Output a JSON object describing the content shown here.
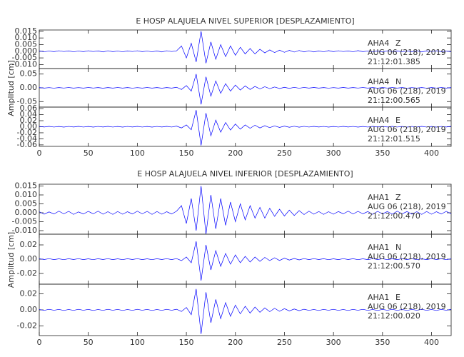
{
  "chart_data": [
    {
      "type": "seismogram",
      "title": "E HOSP ALAJUELA NIVEL SUPERIOR [DESPLAZAMIENTO]",
      "y_label": "Amplitud [cm]",
      "xlim": [
        0,
        420
      ],
      "xticks": [
        0,
        50,
        100,
        150,
        200,
        250,
        300,
        350,
        400
      ],
      "x": [
        0,
        5,
        10,
        15,
        20,
        25,
        30,
        35,
        40,
        45,
        50,
        55,
        60,
        65,
        70,
        75,
        80,
        85,
        90,
        95,
        100,
        105,
        110,
        115,
        120,
        125,
        130,
        135,
        140,
        145,
        150,
        155,
        160,
        165,
        170,
        175,
        180,
        185,
        190,
        195,
        200,
        205,
        210,
        215,
        220,
        225,
        230,
        235,
        240,
        245,
        250,
        255,
        260,
        265,
        270,
        275,
        280,
        285,
        290,
        295,
        300,
        305,
        310,
        315,
        320,
        325,
        330,
        335,
        340,
        345,
        350,
        355,
        360,
        365,
        370,
        375,
        380,
        385,
        390,
        395,
        400,
        405,
        410,
        415,
        420
      ],
      "panels": [
        {
          "station": "AHA4",
          "component": "Z",
          "date": "AUG 06 (218), 2019",
          "time": "21:12:01.385",
          "color": "#0000ff",
          "ylim": [
            -0.013,
            0.016
          ],
          "yticks": [
            {
              "value": 0.015,
              "label": "0.015"
            },
            {
              "value": 0.01,
              "label": "0.010"
            },
            {
              "value": 0.005,
              "label": "0.005"
            },
            {
              "value": 0,
              "label": "0.000"
            },
            {
              "value": -0.005,
              "label": "-0.005"
            },
            {
              "value": -0.01,
              "label": "-0.010"
            }
          ],
          "values": [
            0.0003,
            -0.0004,
            0.0002,
            -0.0003,
            0.0004,
            -0.0002,
            0.0003,
            -0.0004,
            0.0002,
            -0.0003,
            0.0004,
            -0.0002,
            0.0003,
            -0.0005,
            0.0004,
            -0.0003,
            0.0002,
            -0.0004,
            0.0003,
            -0.0002,
            0.0004,
            -0.0003,
            0.0002,
            -0.0004,
            0.0003,
            -0.0005,
            0.0004,
            -0.0002,
            0.0003,
            0.004,
            -0.005,
            0.006,
            -0.008,
            0.015,
            -0.009,
            0.007,
            -0.006,
            0.005,
            -0.004,
            0.004,
            -0.003,
            0.003,
            -0.002,
            0.002,
            -0.002,
            0.0015,
            -0.0012,
            0.001,
            -0.001,
            0.0008,
            -0.0008,
            0.0007,
            -0.0006,
            0.0006,
            -0.0005,
            0.0004,
            -0.0005,
            0.0003,
            -0.0004,
            0.0005,
            -0.0003,
            0.0004,
            -0.0002,
            0.0003,
            -0.0004,
            0.0005,
            -0.0003,
            0.0002,
            -0.0004,
            0.0003,
            -0.0005,
            0.0004,
            -0.0002,
            0.0003,
            -0.0004,
            0.0002,
            -0.0003,
            0.0004,
            -0.0005,
            0.0003,
            -0.0002,
            0.0004,
            -0.0003,
            0.0002,
            -0.0004
          ]
        },
        {
          "station": "AHA4",
          "component": "N",
          "date": "AUG 06 (218), 2019",
          "time": "21:12:00.565",
          "color": "#0000ff",
          "ylim": [
            -0.07,
            0.07
          ],
          "yticks": [
            0.05,
            {
              "value": 0,
              "label": "0.00"
            },
            -0.05
          ],
          "values": [
            0.001,
            -0.001,
            0.0008,
            -0.0012,
            0.001,
            -0.0008,
            0.0012,
            -0.001,
            0.0008,
            -0.001,
            0.0012,
            -0.0008,
            0.001,
            -0.0012,
            0.0009,
            -0.001,
            0.0011,
            -0.0009,
            0.001,
            -0.0012,
            0.0008,
            -0.001,
            0.0011,
            -0.0009,
            0.001,
            -0.0012,
            0.0009,
            -0.001,
            0.002,
            -0.006,
            0.008,
            -0.012,
            0.05,
            -0.06,
            0.04,
            -0.03,
            0.025,
            -0.02,
            0.015,
            -0.012,
            0.01,
            -0.008,
            0.007,
            -0.006,
            0.005,
            -0.004,
            0.004,
            -0.003,
            0.003,
            -0.0025,
            0.002,
            -0.002,
            0.0018,
            -0.0015,
            0.0014,
            -0.001,
            0.0012,
            -0.0009,
            0.001,
            -0.0011,
            0.0008,
            -0.001,
            0.0012,
            -0.0009,
            0.001,
            -0.0008,
            0.0011,
            -0.001,
            0.0009,
            -0.0012,
            0.001,
            -0.0008,
            0.0011,
            -0.0009,
            0.001,
            -0.0012,
            0.0008,
            -0.001,
            0.0009,
            -0.0011,
            0.001,
            -0.0008,
            0.0012,
            -0.0009,
            0.001
          ]
        },
        {
          "station": "AHA4",
          "component": "E",
          "date": "AUG 06 (218), 2019",
          "time": "21:12:01.515",
          "color": "#0000ff",
          "ylim": [
            -0.065,
            0.065
          ],
          "yticks": [
            0.06,
            0.04,
            0.02,
            {
              "value": 0,
              "label": "0.00"
            },
            -0.02,
            -0.04,
            -0.06
          ],
          "values": [
            0.001,
            -0.0009,
            0.0011,
            -0.001,
            0.0008,
            -0.0012,
            0.001,
            -0.0009,
            0.0011,
            -0.001,
            0.0009,
            -0.0011,
            0.001,
            -0.0008,
            0.0012,
            -0.001,
            0.0009,
            -0.0011,
            0.001,
            -0.0009,
            0.0011,
            -0.001,
            0.0008,
            -0.0012,
            0.001,
            -0.0009,
            0.0011,
            -0.001,
            0.002,
            -0.004,
            0.006,
            -0.01,
            0.055,
            -0.062,
            0.045,
            -0.03,
            0.022,
            -0.018,
            0.014,
            -0.011,
            0.009,
            -0.008,
            0.006,
            -0.005,
            0.005,
            -0.004,
            0.0035,
            -0.003,
            0.0028,
            -0.0024,
            0.002,
            -0.0018,
            0.0016,
            -0.0014,
            0.0013,
            -0.001,
            0.0011,
            -0.0009,
            0.001,
            -0.0012,
            0.0008,
            -0.001,
            0.0011,
            -0.0009,
            0.001,
            -0.0011,
            0.0009,
            -0.001,
            0.0012,
            -0.0008,
            0.001,
            -0.0009,
            0.0011,
            -0.001,
            0.0009,
            -0.0011,
            0.001,
            -0.0008,
            0.0012,
            -0.001,
            0.0009,
            -0.0011,
            0.001,
            -0.0009,
            0.0011
          ]
        }
      ]
    },
    {
      "type": "seismogram",
      "title": "E HOSP ALAJUELA NIVEL INFERIOR [DESPLAZAMIENTO]",
      "y_label": "Amplitud [cm]",
      "xlim": [
        0,
        420
      ],
      "xticks": [
        0,
        50,
        100,
        150,
        200,
        250,
        300,
        350,
        400
      ],
      "x": [
        0,
        5,
        10,
        15,
        20,
        25,
        30,
        35,
        40,
        45,
        50,
        55,
        60,
        65,
        70,
        75,
        80,
        85,
        90,
        95,
        100,
        105,
        110,
        115,
        120,
        125,
        130,
        135,
        140,
        145,
        150,
        155,
        160,
        165,
        170,
        175,
        180,
        185,
        190,
        195,
        200,
        205,
        210,
        215,
        220,
        225,
        230,
        235,
        240,
        245,
        250,
        255,
        260,
        265,
        270,
        275,
        280,
        285,
        290,
        295,
        300,
        305,
        310,
        315,
        320,
        325,
        330,
        335,
        340,
        345,
        350,
        355,
        360,
        365,
        370,
        375,
        380,
        385,
        390,
        395,
        400,
        405,
        410,
        415,
        420
      ],
      "panels": [
        {
          "station": "AHA1",
          "component": "Z",
          "date": "AUG 06 (218), 2019",
          "time": "21:12:00.470",
          "color": "#0000ff",
          "ylim": [
            -0.012,
            0.016
          ],
          "yticks": [
            {
              "value": 0.015,
              "label": "0.015"
            },
            {
              "value": 0.01,
              "label": "0.010"
            },
            {
              "value": 0.005,
              "label": "0.005"
            },
            {
              "value": 0,
              "label": "0.000"
            },
            {
              "value": -0.005,
              "label": "-0.005"
            },
            {
              "value": -0.01,
              "label": "-0.010"
            }
          ],
          "values": [
            0.0006,
            -0.0008,
            0.0005,
            -0.0007,
            0.0009,
            -0.0006,
            0.0008,
            -0.0009,
            0.0005,
            -0.0007,
            0.0008,
            -0.0006,
            0.0009,
            -0.0008,
            0.0006,
            -0.0009,
            0.0007,
            -0.0008,
            0.0006,
            -0.0007,
            0.0009,
            -0.0006,
            0.0008,
            -0.0009,
            0.0007,
            -0.0008,
            0.0006,
            -0.0007,
            0.0009,
            0.004,
            -0.006,
            0.008,
            -0.01,
            0.015,
            -0.012,
            0.01,
            -0.009,
            0.008,
            -0.007,
            0.006,
            -0.005,
            0.005,
            -0.004,
            0.004,
            -0.003,
            0.003,
            -0.003,
            0.0025,
            -0.002,
            0.002,
            -0.0018,
            0.0015,
            -0.0015,
            0.0012,
            -0.001,
            0.0009,
            -0.0008,
            0.0007,
            -0.0009,
            0.0006,
            -0.0008,
            0.0007,
            -0.0006,
            0.0009,
            -0.0007,
            0.0008,
            -0.0006,
            0.0007,
            -0.0009,
            0.0008,
            -0.0006,
            0.0007,
            -0.0008,
            0.0009,
            -0.0006,
            0.0007,
            -0.0008,
            0.0006,
            -0.0009,
            0.0007,
            -0.0008,
            0.0006,
            -0.0007,
            0.0008,
            -0.0006
          ]
        },
        {
          "station": "AHA1",
          "component": "N",
          "date": "AUG 06 (218), 2019",
          "time": "21:12:00.570",
          "color": "#0000ff",
          "ylim": [
            -0.035,
            0.035
          ],
          "yticks": [
            0.02,
            {
              "value": 0,
              "label": "0.00"
            },
            -0.02
          ],
          "values": [
            0.0006,
            -0.0005,
            0.0007,
            -0.0006,
            0.0005,
            -0.0007,
            0.0006,
            -0.0005,
            0.0007,
            -0.0006,
            0.0005,
            -0.0007,
            0.0006,
            -0.0005,
            0.0007,
            -0.0006,
            0.0005,
            -0.0007,
            0.0006,
            -0.0005,
            0.0007,
            -0.0006,
            0.0005,
            -0.0007,
            0.0006,
            -0.0005,
            0.0007,
            -0.0006,
            0.0008,
            -0.002,
            0.003,
            -0.005,
            0.025,
            -0.03,
            0.02,
            -0.015,
            0.012,
            -0.01,
            0.008,
            -0.007,
            0.006,
            -0.005,
            0.004,
            -0.004,
            0.003,
            -0.003,
            0.0025,
            -0.002,
            0.002,
            -0.0018,
            0.0015,
            -0.0012,
            0.001,
            -0.001,
            0.0008,
            -0.0006,
            0.0007,
            -0.0005,
            0.0006,
            -0.0007,
            0.0005,
            -0.0006,
            0.0007,
            -0.0005,
            0.0006,
            -0.0007,
            0.0005,
            -0.0006,
            0.0007,
            -0.0005,
            0.0006,
            -0.0007,
            0.0005,
            -0.0006,
            0.0007,
            -0.0005,
            0.0006,
            -0.0007,
            0.0005,
            -0.0006,
            0.0007,
            -0.0005,
            0.0006,
            -0.0007,
            0.0005
          ]
        },
        {
          "station": "AHA1",
          "component": "E",
          "date": "AUG 06 (218), 2019",
          "time": "21:12:00.020",
          "color": "#0000ff",
          "ylim": [
            -0.032,
            0.032
          ],
          "yticks": [
            0.02,
            {
              "value": 0,
              "label": "0.00"
            },
            -0.02
          ],
          "values": [
            0.0005,
            -0.0006,
            0.0007,
            -0.0005,
            0.0006,
            -0.0007,
            0.0005,
            -0.0006,
            0.0007,
            -0.0005,
            0.0006,
            -0.0007,
            0.0005,
            -0.0006,
            0.0007,
            -0.0005,
            0.0006,
            -0.0007,
            0.0005,
            -0.0006,
            0.0007,
            -0.0005,
            0.0006,
            -0.0007,
            0.0005,
            -0.0006,
            0.0007,
            -0.0005,
            0.0008,
            -0.002,
            0.003,
            -0.006,
            0.026,
            -0.03,
            0.022,
            -0.016,
            0.013,
            -0.011,
            0.009,
            -0.008,
            0.006,
            -0.005,
            0.0045,
            -0.004,
            0.0035,
            -0.003,
            0.0025,
            -0.0022,
            0.002,
            -0.0018,
            0.0015,
            -0.0013,
            0.0011,
            -0.001,
            0.0008,
            -0.0006,
            0.0005,
            -0.0007,
            0.0006,
            -0.0005,
            0.0007,
            -0.0006,
            0.0005,
            -0.0007,
            0.0006,
            -0.0005,
            0.0007,
            -0.0006,
            0.0005,
            -0.0007,
            0.0006,
            -0.0005,
            0.0007,
            -0.0006,
            0.0005,
            -0.0007,
            0.0006,
            -0.0005,
            0.0007,
            -0.0006,
            0.0005,
            -0.0007,
            0.0006,
            -0.0005,
            0.0007
          ]
        }
      ]
    }
  ]
}
